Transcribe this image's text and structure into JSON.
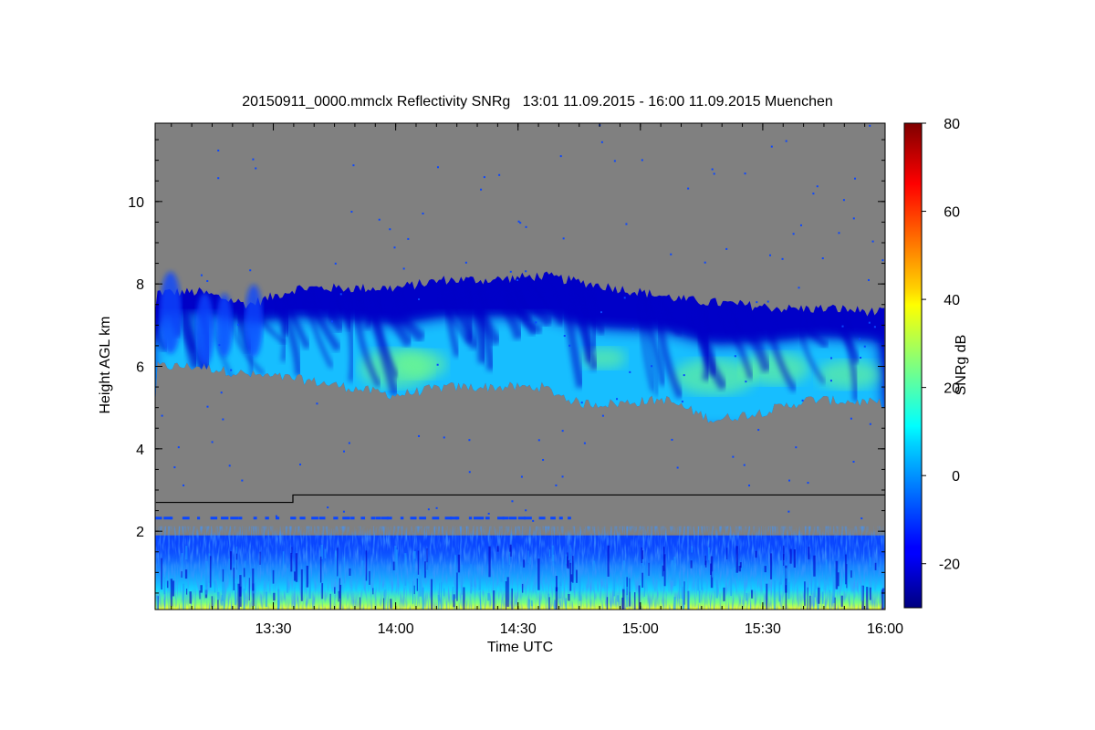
{
  "chart_data": {
    "type": "heatmap",
    "title": "20150911_0000.mmclx Reflectivity SNRg   13:01 11.09.2015 - 16:00 11.09.2015 Muenchen",
    "xlabel": "Time UTC",
    "ylabel": "Height AGL km",
    "colorbar_label": "SNRg dB",
    "xlim": [
      13.017,
      16.0
    ],
    "ylim": [
      0.1,
      11.9
    ],
    "x_ticks": [
      {
        "value": 13.5,
        "label": "13:30"
      },
      {
        "value": 14.0,
        "label": "14:00"
      },
      {
        "value": 14.5,
        "label": "14:30"
      },
      {
        "value": 15.0,
        "label": "15:00"
      },
      {
        "value": 15.5,
        "label": "15:30"
      },
      {
        "value": 16.0,
        "label": "16:00"
      }
    ],
    "y_ticks": [
      {
        "value": 2,
        "label": "2"
      },
      {
        "value": 4,
        "label": "4"
      },
      {
        "value": 6,
        "label": "6"
      },
      {
        "value": 8,
        "label": "8"
      },
      {
        "value": 10,
        "label": "10"
      }
    ],
    "colorbar_range": [
      -30,
      80
    ],
    "colorbar_ticks": [
      {
        "value": -20,
        "label": "-20"
      },
      {
        "value": 0,
        "label": "0"
      },
      {
        "value": 20,
        "label": "20"
      },
      {
        "value": 40,
        "label": "40"
      },
      {
        "value": 60,
        "label": "60"
      },
      {
        "value": 80,
        "label": "80"
      }
    ],
    "colormap": "jet",
    "background_color": "#808080",
    "colors": {
      "deep_blue": "#0000c8",
      "blue": "#0a46ff",
      "light_blue": "#1e9bff",
      "cyan": "#14d2ff",
      "green": "#78ff80",
      "yellow": "#ffff20"
    },
    "cloud_layer": {
      "top_km": [
        [
          13.02,
          7.8
        ],
        [
          13.2,
          7.8
        ],
        [
          13.4,
          7.5
        ],
        [
          13.6,
          7.9
        ],
        [
          13.8,
          7.9
        ],
        [
          14.0,
          7.9
        ],
        [
          14.2,
          8.1
        ],
        [
          14.4,
          8.1
        ],
        [
          14.6,
          8.2
        ],
        [
          14.8,
          8.0
        ],
        [
          15.0,
          7.8
        ],
        [
          15.2,
          7.6
        ],
        [
          15.4,
          7.5
        ],
        [
          15.6,
          7.4
        ],
        [
          15.8,
          7.4
        ],
        [
          16.0,
          7.3
        ]
      ],
      "base_km": [
        [
          13.02,
          6.0
        ],
        [
          13.2,
          6.0
        ],
        [
          13.4,
          5.8
        ],
        [
          13.6,
          5.7
        ],
        [
          13.8,
          5.5
        ],
        [
          14.0,
          5.3
        ],
        [
          14.2,
          5.5
        ],
        [
          14.4,
          5.5
        ],
        [
          14.6,
          5.5
        ],
        [
          14.75,
          5.1
        ],
        [
          14.9,
          5.1
        ],
        [
          15.1,
          5.2
        ],
        [
          15.3,
          4.7
        ],
        [
          15.5,
          4.9
        ],
        [
          15.7,
          5.2
        ],
        [
          16.0,
          5.1
        ]
      ]
    },
    "boundary_layer_top_km": 1.9,
    "noise_line_km": [
      [
        13.02,
        2.7
      ],
      [
        13.58,
        2.7
      ],
      [
        13.58,
        2.88
      ],
      [
        16.0,
        2.88
      ]
    ],
    "clutter_line_km": 2.33
  }
}
